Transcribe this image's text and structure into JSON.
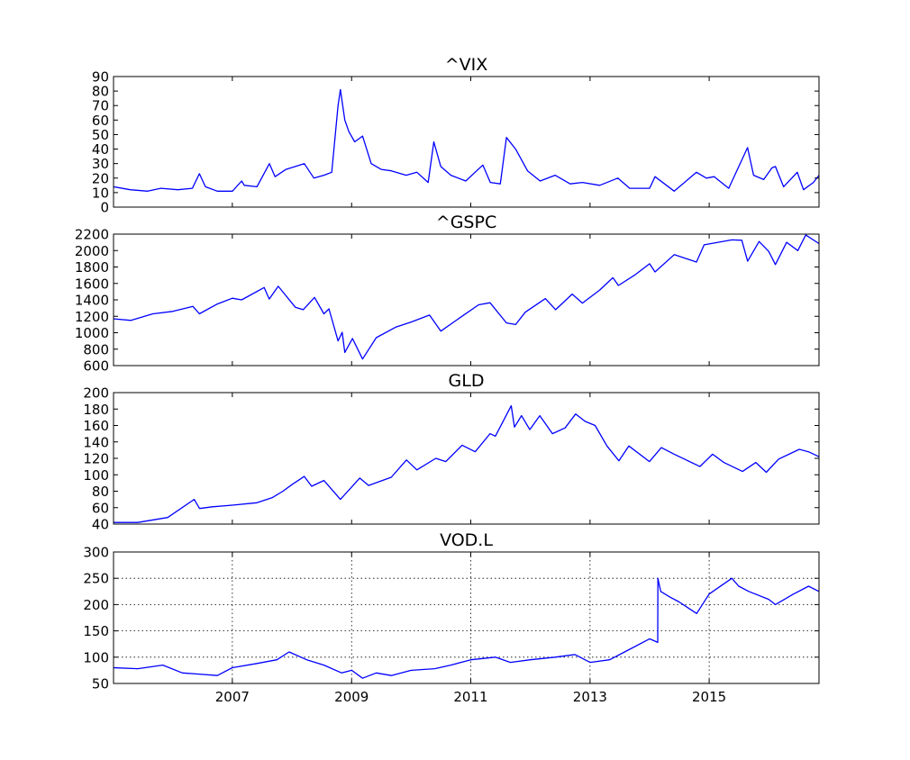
{
  "chart_data": [
    {
      "type": "line",
      "title": "^VIX",
      "xlim": [
        "2005-01-03",
        "2016-11-04"
      ],
      "ylim": [
        0,
        90
      ],
      "yticks": [
        0,
        10,
        20,
        30,
        40,
        50,
        60,
        70,
        80,
        90
      ],
      "xticks": [],
      "grid": false,
      "color": "#0000ff",
      "series": [
        {
          "x": [
            "2005-01-03",
            "2005-04-15",
            "2005-08-01",
            "2005-10-20",
            "2006-02-01",
            "2006-05-01",
            "2006-06-13",
            "2006-07-20",
            "2006-10-01",
            "2007-01-02",
            "2007-02-27",
            "2007-03-15",
            "2007-06-01",
            "2007-08-16",
            "2007-09-20",
            "2007-11-26",
            "2008-01-22",
            "2008-03-17",
            "2008-05-15",
            "2008-07-15",
            "2008-09-01",
            "2008-10-10",
            "2008-10-24",
            "2008-11-20",
            "2008-12-15",
            "2009-01-20",
            "2009-03-09",
            "2009-05-01",
            "2009-07-01",
            "2009-09-01",
            "2009-12-01",
            "2010-02-05",
            "2010-04-15",
            "2010-05-20",
            "2010-07-01",
            "2010-09-01",
            "2010-12-01",
            "2011-03-16",
            "2011-05-01",
            "2011-07-01",
            "2011-08-08",
            "2011-10-03",
            "2011-12-15",
            "2012-03-01",
            "2012-06-01",
            "2012-09-01",
            "2012-11-15",
            "2013-03-01",
            "2013-06-20",
            "2013-09-01",
            "2014-01-01",
            "2014-02-03",
            "2014-06-01",
            "2014-10-15",
            "2014-12-15",
            "2015-02-01",
            "2015-05-01",
            "2015-08-24",
            "2015-09-30",
            "2015-12-01",
            "2016-01-20",
            "2016-02-11",
            "2016-04-01",
            "2016-06-24",
            "2016-08-01",
            "2016-10-01",
            "2016-11-04"
          ],
          "y": [
            14,
            12,
            11,
            13,
            12,
            13,
            23,
            14,
            11,
            11,
            18,
            15,
            14,
            30,
            21,
            26,
            28,
            30,
            20,
            22,
            24,
            70,
            81,
            60,
            52,
            45,
            49,
            30,
            26,
            25,
            22,
            24,
            17,
            45,
            28,
            22,
            18,
            29,
            17,
            16,
            48,
            40,
            25,
            18,
            22,
            16,
            17,
            15,
            20,
            13,
            13,
            21,
            11,
            24,
            20,
            21,
            13,
            41,
            22,
            19,
            27,
            28,
            14,
            24,
            12,
            17,
            22
          ]
        }
      ]
    },
    {
      "type": "line",
      "title": "^GSPC",
      "xlim": [
        "2005-01-03",
        "2016-11-04"
      ],
      "ylim": [
        600,
        2200
      ],
      "yticks": [
        600,
        800,
        1000,
        1200,
        1400,
        1600,
        1800,
        2000,
        2200
      ],
      "xticks": [],
      "grid": false,
      "color": "#0000ff",
      "series": [
        {
          "x": [
            "2005-01-03",
            "2005-04-20",
            "2005-09-01",
            "2006-01-01",
            "2006-05-05",
            "2006-06-13",
            "2006-10-01",
            "2007-01-01",
            "2007-02-27",
            "2007-07-15",
            "2007-08-15",
            "2007-10-09",
            "2008-01-22",
            "2008-03-10",
            "2008-05-19",
            "2008-07-15",
            "2008-08-15",
            "2008-10-10",
            "2008-11-04",
            "2008-11-20",
            "2009-01-06",
            "2009-03-09",
            "2009-06-01",
            "2009-10-01",
            "2010-01-01",
            "2010-04-23",
            "2010-07-02",
            "2010-11-01",
            "2011-02-18",
            "2011-04-29",
            "2011-08-08",
            "2011-10-03",
            "2011-12-01",
            "2012-04-02",
            "2012-06-04",
            "2012-09-14",
            "2012-11-15",
            "2013-03-01",
            "2013-05-21",
            "2013-06-24",
            "2013-10-01",
            "2014-01-01",
            "2014-02-03",
            "2014-06-01",
            "2014-10-15",
            "2014-12-01",
            "2015-05-20",
            "2015-07-20",
            "2015-08-25",
            "2015-11-03",
            "2016-01-01",
            "2016-02-11",
            "2016-04-20",
            "2016-06-27",
            "2016-08-15",
            "2016-11-04"
          ],
          "y": [
            1170,
            1150,
            1230,
            1260,
            1320,
            1230,
            1350,
            1420,
            1400,
            1550,
            1410,
            1565,
            1310,
            1280,
            1430,
            1230,
            1290,
            900,
            1005,
            760,
            930,
            680,
            940,
            1070,
            1130,
            1215,
            1020,
            1190,
            1340,
            1365,
            1120,
            1100,
            1250,
            1415,
            1280,
            1470,
            1360,
            1520,
            1670,
            1575,
            1700,
            1840,
            1740,
            1950,
            1860,
            2070,
            2130,
            2125,
            1870,
            2110,
            1990,
            1830,
            2100,
            2000,
            2190,
            2085
          ]
        }
      ]
    },
    {
      "type": "line",
      "title": "GLD",
      "xlim": [
        "2005-01-03",
        "2016-11-04"
      ],
      "ylim": [
        40,
        200
      ],
      "yticks": [
        40,
        60,
        80,
        100,
        120,
        140,
        160,
        180,
        200
      ],
      "xticks": [],
      "grid": false,
      "color": "#0000ff",
      "series": [
        {
          "x": [
            "2005-01-03",
            "2005-06-01",
            "2005-12-01",
            "2006-05-12",
            "2006-06-14",
            "2006-09-01",
            "2007-01-01",
            "2007-06-01",
            "2007-09-01",
            "2007-11-07",
            "2008-01-01",
            "2008-03-17",
            "2008-05-01",
            "2008-07-15",
            "2008-10-24",
            "2009-02-20",
            "2009-04-15",
            "2009-09-01",
            "2009-12-03",
            "2010-02-05",
            "2010-06-01",
            "2010-08-01",
            "2010-11-09",
            "2011-01-28",
            "2011-04-29",
            "2011-06-01",
            "2011-09-06",
            "2011-09-26",
            "2011-11-08",
            "2011-12-29",
            "2012-02-28",
            "2012-05-16",
            "2012-08-01",
            "2012-10-05",
            "2012-12-01",
            "2013-02-01",
            "2013-04-15",
            "2013-06-27",
            "2013-08-27",
            "2013-12-31",
            "2014-03-14",
            "2014-06-01",
            "2014-11-05",
            "2015-01-22",
            "2015-04-01",
            "2015-07-24",
            "2015-10-14",
            "2015-12-17",
            "2016-03-01",
            "2016-07-06",
            "2016-09-01",
            "2016-11-04"
          ],
          "y": [
            42,
            42,
            48,
            70,
            59,
            61,
            63,
            66,
            72,
            80,
            88,
            98,
            86,
            93,
            70,
            96,
            87,
            97,
            118,
            106,
            120,
            116,
            136,
            128,
            150,
            147,
            184,
            158,
            172,
            155,
            172,
            150,
            157,
            174,
            165,
            160,
            135,
            117,
            135,
            116,
            133,
            125,
            110,
            125,
            115,
            104,
            115,
            103,
            119,
            131,
            128,
            122
          ]
        }
      ]
    },
    {
      "type": "line",
      "title": "VOD.L",
      "xlim": [
        "2005-01-03",
        "2016-11-04"
      ],
      "ylim": [
        50,
        300
      ],
      "yticks": [
        50,
        100,
        150,
        200,
        250,
        300
      ],
      "xticks": [
        "2007",
        "2009",
        "2011",
        "2013",
        "2015"
      ],
      "xtick_dates": [
        "2007-01-01",
        "2009-01-01",
        "2011-01-01",
        "2013-01-01",
        "2015-01-01"
      ],
      "grid": true,
      "color": "#0000ff",
      "series": [
        {
          "x": [
            "2005-01-03",
            "2005-06-01",
            "2005-11-01",
            "2006-03-01",
            "2006-06-01",
            "2006-10-01",
            "2007-01-01",
            "2007-06-01",
            "2007-10-01",
            "2007-12-15",
            "2008-04-01",
            "2008-07-15",
            "2008-11-01",
            "2009-01-01",
            "2009-03-09",
            "2009-06-01",
            "2009-09-01",
            "2010-01-01",
            "2010-05-25",
            "2010-09-01",
            "2011-01-01",
            "2011-06-01",
            "2011-09-01",
            "2012-01-01",
            "2012-06-01",
            "2012-10-01",
            "2013-01-01",
            "2013-05-01",
            "2013-08-01",
            "2014-01-01",
            "2014-02-20",
            "2014-02-21",
            "2014-03-10",
            "2014-05-01",
            "2014-07-01",
            "2014-10-16",
            "2015-01-01",
            "2015-05-20",
            "2015-07-01",
            "2015-09-01",
            "2016-01-01",
            "2016-02-11",
            "2016-06-01",
            "2016-09-01",
            "2016-11-04"
          ],
          "y": [
            80,
            78,
            85,
            70,
            68,
            65,
            80,
            88,
            95,
            110,
            95,
            85,
            70,
            75,
            60,
            70,
            65,
            75,
            78,
            85,
            95,
            100,
            90,
            95,
            100,
            105,
            90,
            95,
            110,
            135,
            128,
            250,
            225,
            215,
            205,
            183,
            220,
            250,
            235,
            225,
            210,
            200,
            220,
            235,
            225
          ]
        }
      ]
    }
  ]
}
